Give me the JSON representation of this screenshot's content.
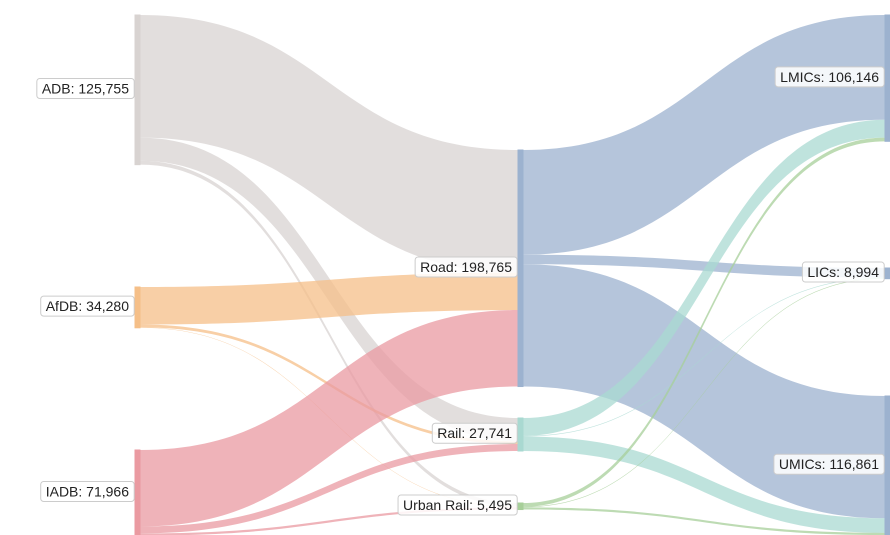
{
  "chart_data": {
    "type": "sankey",
    "nodes": [
      {
        "name": "ADB",
        "label": "ADB: 125,755",
        "value": 125755,
        "color": "#d8d3d1"
      },
      {
        "name": "AfDB",
        "label": "AfDB: 34,280",
        "value": 34280,
        "color": "#f5bf88"
      },
      {
        "name": "IADB",
        "label": "IADB: 71,966",
        "value": 71966,
        "color": "#ea9aa1"
      },
      {
        "name": "Road",
        "label": "Road: 198,765",
        "value": 198765,
        "color": "#9cb2cf"
      },
      {
        "name": "Rail",
        "label": "Rail: 27,741",
        "value": 27741,
        "color": "#a9d9d1"
      },
      {
        "name": "Urban Rail",
        "label": "Urban Rail: 5,495",
        "value": 5495,
        "color": "#a7cf99"
      },
      {
        "name": "LMICs",
        "label": "LMICs: 106,146",
        "value": 106146,
        "color": "#9cb2cf"
      },
      {
        "name": "LICs",
        "label": "LICs: 8,994",
        "value": 8994,
        "color": "#9cb2cf"
      },
      {
        "name": "UMICs",
        "label": "UMICs: 116,861",
        "value": 116861,
        "color": "#9cb2cf"
      }
    ],
    "links": [
      {
        "source": 0,
        "target": 3,
        "value": 103000
      },
      {
        "source": 0,
        "target": 4,
        "value": 19500
      },
      {
        "source": 0,
        "target": 5,
        "value": 3255
      },
      {
        "source": 1,
        "target": 3,
        "value": 31500
      },
      {
        "source": 1,
        "target": 4,
        "value": 2400
      },
      {
        "source": 1,
        "target": 5,
        "value": 380
      },
      {
        "source": 2,
        "target": 3,
        "value": 64265
      },
      {
        "source": 2,
        "target": 4,
        "value": 5841
      },
      {
        "source": 2,
        "target": 5,
        "value": 1860
      },
      {
        "source": 3,
        "target": 6,
        "value": 88000
      },
      {
        "source": 3,
        "target": 7,
        "value": 8000
      },
      {
        "source": 3,
        "target": 8,
        "value": 102765
      },
      {
        "source": 4,
        "target": 6,
        "value": 15000
      },
      {
        "source": 4,
        "target": 7,
        "value": 500
      },
      {
        "source": 4,
        "target": 8,
        "value": 12241
      },
      {
        "source": 5,
        "target": 6,
        "value": 3146
      },
      {
        "source": 5,
        "target": 7,
        "value": 494
      },
      {
        "source": 5,
        "target": 8,
        "value": 1855
      }
    ]
  }
}
